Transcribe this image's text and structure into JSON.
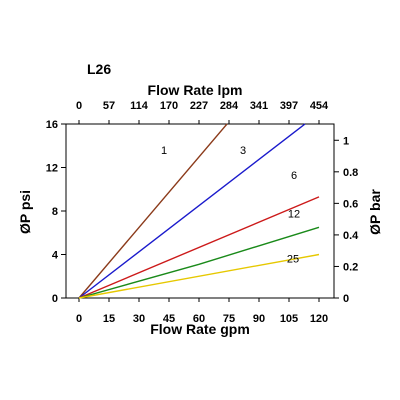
{
  "chart_data": {
    "type": "line",
    "title": "L26",
    "xlabel": "Flow Rate gpm",
    "ylabel": "ØP psi",
    "x2label": "Flow Rate lpm",
    "y2label": "ØP bar",
    "xlim": [
      0,
      120
    ],
    "ylim": [
      0,
      16
    ],
    "x_ticks": [
      0,
      15,
      30,
      45,
      60,
      75,
      90,
      105,
      120
    ],
    "y_ticks": [
      0,
      4,
      8,
      12,
      16
    ],
    "x2_ticks": [
      "0",
      "57",
      "114",
      "170",
      "227",
      "284",
      "341",
      "397",
      "454"
    ],
    "y2_ticks": [
      "0",
      "0.2",
      "0.4",
      "0.6",
      "0.8",
      "1"
    ],
    "grid": false,
    "series": [
      {
        "name": "1",
        "color": "#8b3a1a",
        "x": [
          0,
          74
        ],
        "y": [
          0,
          16
        ]
      },
      {
        "name": "3",
        "color": "#1a1acc",
        "x": [
          0,
          113
        ],
        "y": [
          0,
          16
        ]
      },
      {
        "name": "6",
        "color": "#cc1a1a",
        "x": [
          0,
          120
        ],
        "y": [
          0,
          9.3
        ]
      },
      {
        "name": "12",
        "color": "#1a8a1a",
        "x": [
          0,
          60,
          120
        ],
        "y": [
          0,
          3.1,
          6.5
        ]
      },
      {
        "name": "25",
        "color": "#e6c800",
        "x": [
          0,
          120
        ],
        "y": [
          0,
          4.0
        ]
      }
    ]
  }
}
